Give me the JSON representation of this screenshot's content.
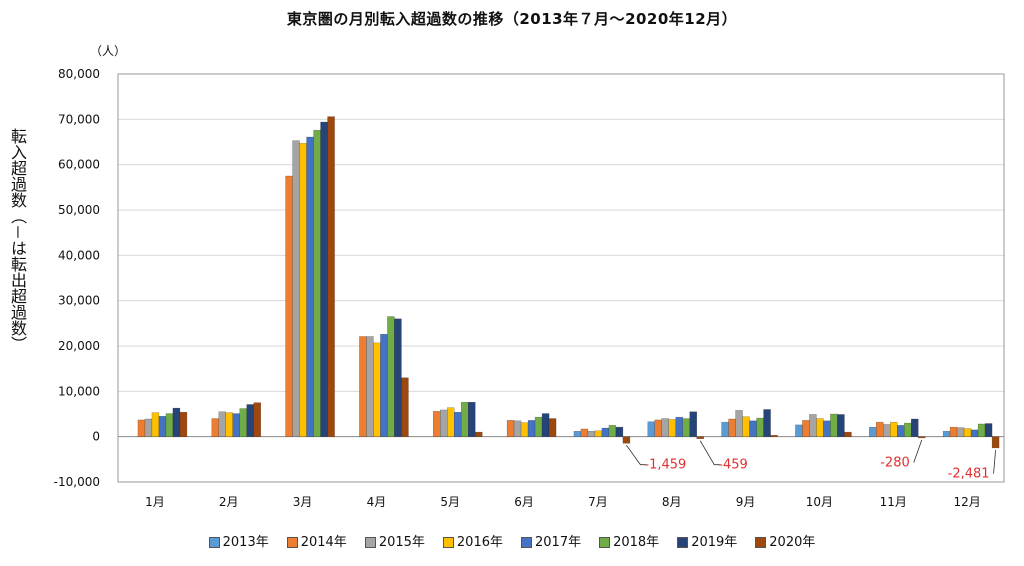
{
  "chart_data": {
    "type": "bar",
    "title": "東京圏の月別転入超過数の推移（2013年７月～2020年12月）",
    "unit": "（人）",
    "ylabel": "転入超過数（－は転出超過数）",
    "ylim": [
      -10000,
      80000
    ],
    "yticks": [
      "-10,000",
      "0",
      "10,000",
      "20,000",
      "30,000",
      "40,000",
      "50,000",
      "60,000",
      "70,000",
      "80,000"
    ],
    "ytick_values": [
      -10000,
      0,
      10000,
      20000,
      30000,
      40000,
      50000,
      60000,
      70000,
      80000
    ],
    "categories": [
      "1月",
      "2月",
      "3月",
      "4月",
      "5月",
      "6月",
      "7月",
      "8月",
      "9月",
      "10月",
      "11月",
      "12月"
    ],
    "series": [
      {
        "name": "2013年",
        "color": "#5b9bd5",
        "values": [
          null,
          null,
          null,
          null,
          null,
          null,
          1200,
          3300,
          3200,
          2600,
          2100,
          1200
        ]
      },
      {
        "name": "2014年",
        "color": "#ed7d31",
        "values": [
          3700,
          4000,
          57500,
          22100,
          5600,
          3600,
          1700,
          3700,
          3900,
          3600,
          3200,
          2100
        ]
      },
      {
        "name": "2015年",
        "color": "#a5a5a5",
        "values": [
          3900,
          5500,
          65300,
          22100,
          5900,
          3500,
          1200,
          4000,
          5800,
          4900,
          2700,
          2000
        ]
      },
      {
        "name": "2016年",
        "color": "#ffc000",
        "values": [
          5300,
          5300,
          64700,
          20700,
          6400,
          3100,
          1300,
          3800,
          4400,
          4000,
          3200,
          1800
        ]
      },
      {
        "name": "2017年",
        "color": "#4472c4",
        "values": [
          4500,
          5100,
          66100,
          22600,
          5400,
          3600,
          1900,
          4300,
          3500,
          3500,
          2500,
          1500
        ]
      },
      {
        "name": "2018年",
        "color": "#70ad47",
        "values": [
          5100,
          6200,
          67600,
          26500,
          7600,
          4300,
          2500,
          4000,
          4100,
          5000,
          3000,
          2800
        ]
      },
      {
        "name": "2019年",
        "color": "#264478",
        "values": [
          6300,
          7100,
          69400,
          26000,
          7600,
          5100,
          2100,
          5500,
          6000,
          4900,
          3900,
          2900
        ]
      },
      {
        "name": "2020年",
        "color": "#9e480e",
        "values": [
          5400,
          7500,
          70600,
          13000,
          1000,
          4000,
          -1459,
          -459,
          300,
          1000,
          -280,
          -2481
        ]
      }
    ],
    "annotations": [
      {
        "text": "-1,459",
        "month": 6
      },
      {
        "text": "-459",
        "month": 7
      },
      {
        "text": "-280",
        "month": 10
      },
      {
        "text": "-2,481",
        "month": 11
      }
    ],
    "legend_position": "bottom",
    "grid": true
  }
}
